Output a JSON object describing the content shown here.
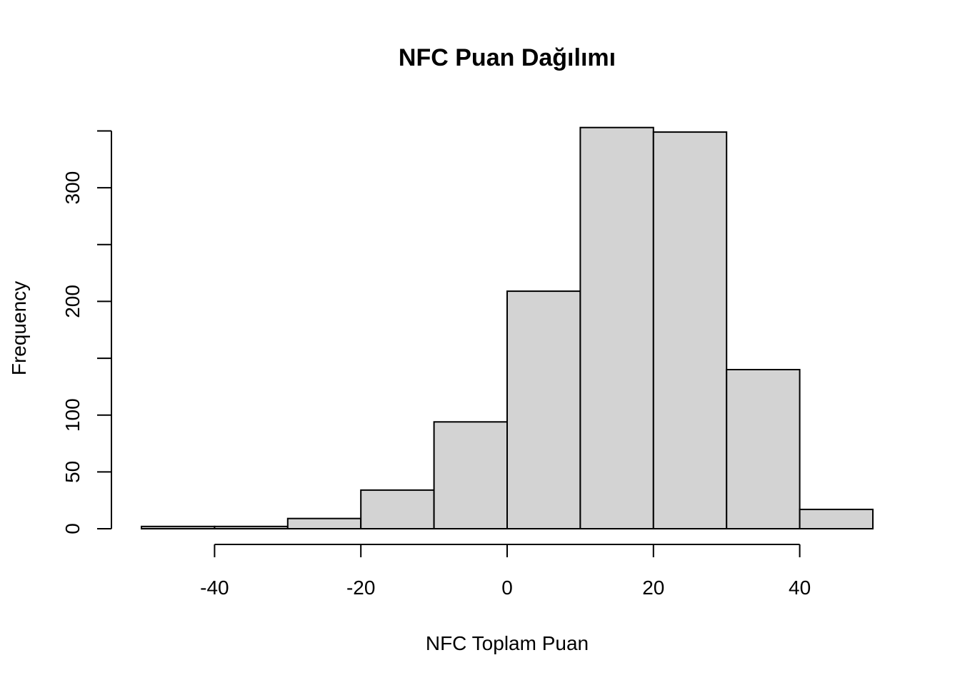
{
  "chart_data": {
    "type": "bar",
    "title": "NFC Puan Dağılımı",
    "xlabel": "NFC Toplam Puan",
    "ylabel": "Frequency",
    "bins": [
      {
        "start": -50,
        "end": -40,
        "count": 2
      },
      {
        "start": -40,
        "end": -30,
        "count": 2
      },
      {
        "start": -30,
        "end": -20,
        "count": 9
      },
      {
        "start": -20,
        "end": -10,
        "count": 34
      },
      {
        "start": -10,
        "end": 0,
        "count": 94
      },
      {
        "start": 0,
        "end": 10,
        "count": 209
      },
      {
        "start": 10,
        "end": 20,
        "count": 353
      },
      {
        "start": 20,
        "end": 30,
        "count": 349
      },
      {
        "start": 30,
        "end": 40,
        "count": 140
      },
      {
        "start": 40,
        "end": 50,
        "count": 17
      }
    ],
    "xlim": [
      -50,
      50
    ],
    "ylim": [
      0,
      350
    ],
    "x_ticks": [
      -40,
      -20,
      0,
      20,
      40
    ],
    "x_tick_labels": [
      "-40",
      "-20",
      "0",
      "20",
      "40"
    ],
    "y_ticks": [
      0,
      50,
      100,
      150,
      200,
      250,
      300,
      350
    ],
    "y_tick_labels": [
      "0",
      "50",
      "100",
      "",
      "200",
      "",
      "300",
      ""
    ],
    "grid": false,
    "colors": {
      "bar_fill": "#d3d3d3",
      "bar_stroke": "#000000"
    }
  }
}
